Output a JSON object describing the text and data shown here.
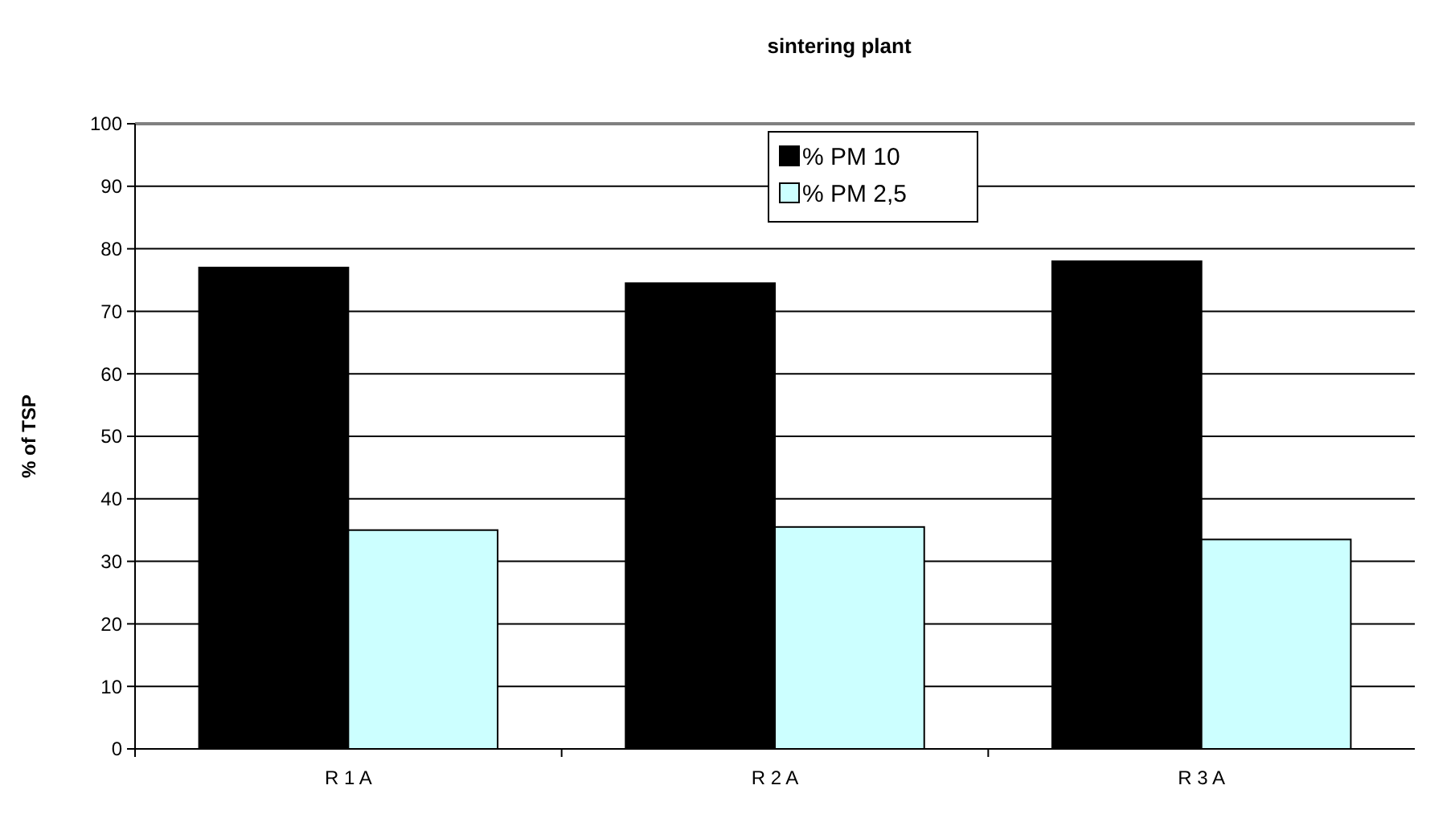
{
  "chart_data": {
    "type": "bar",
    "title": "sintering plant",
    "ylabel": "% of TSP",
    "categories": [
      "R 1 A",
      "R 2 A",
      "R 3 A"
    ],
    "series": [
      {
        "name": "% PM 10",
        "color": "#000000",
        "values": [
          77,
          74.5,
          78
        ]
      },
      {
        "name": "% PM 2,5",
        "color": "#ccffff",
        "values": [
          35,
          35.5,
          33.5
        ]
      }
    ],
    "ylim": [
      0,
      100
    ],
    "yticks": [
      0,
      10,
      20,
      30,
      40,
      50,
      60,
      70,
      80,
      90,
      100
    ],
    "grid": "y",
    "legend": "top"
  }
}
